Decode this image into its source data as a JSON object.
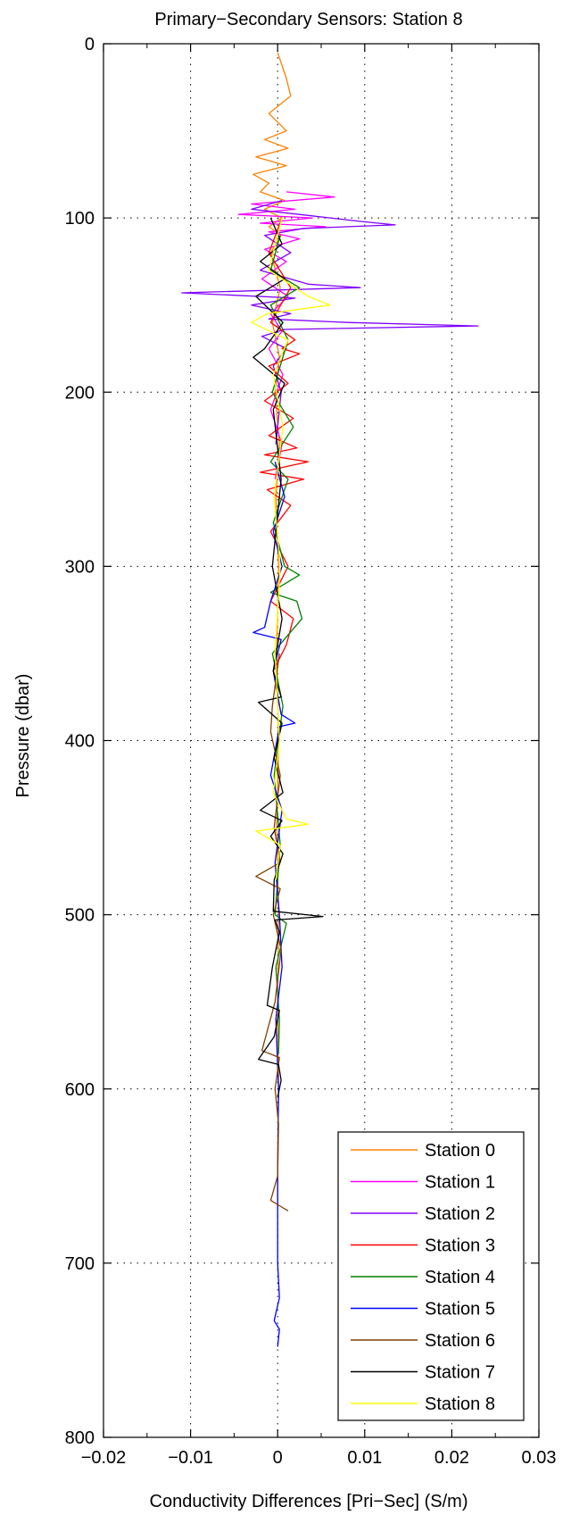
{
  "chart_data": {
    "type": "line",
    "title": "Primary−Secondary Sensors: Station 8",
    "xlabel": "Conductivity Differences [Pri−Sec] (S/m)",
    "ylabel": "Pressure (dbar)",
    "xlim": [
      -0.02,
      0.03
    ],
    "ylim": [
      0,
      800
    ],
    "y_reversed": true,
    "grid": true,
    "legend_position": "bottom-right",
    "x_ticks": [
      -0.02,
      -0.01,
      0,
      0.01,
      0.02,
      0.03
    ],
    "x_tick_labels": [
      "−0.02",
      "−0.01",
      "0",
      "0.01",
      "0.02",
      "0.03"
    ],
    "y_ticks": [
      0,
      100,
      200,
      300,
      400,
      500,
      600,
      700,
      800
    ],
    "y_tick_labels": [
      "0",
      "100",
      "200",
      "300",
      "400",
      "500",
      "600",
      "700",
      "800"
    ],
    "series": [
      {
        "name": "Station 0",
        "color": "#ff8000",
        "p": [
          5,
          20,
          30,
          40,
          50,
          55,
          60,
          65,
          70,
          75,
          80,
          85,
          90,
          95,
          100,
          105,
          110,
          120,
          140,
          160,
          180,
          200,
          230,
          260,
          300,
          350,
          400,
          450,
          500,
          550,
          600,
          640,
          660,
          668
        ],
        "v": [
          0,
          0.001,
          0.0015,
          -0.001,
          0.001,
          -0.0015,
          0.0012,
          -0.0025,
          0.001,
          -0.0028,
          -0.001,
          -0.002,
          0.0008,
          -0.0015,
          0.0005,
          -0.001,
          0.0004,
          -0.0008,
          0.0003,
          -0.0006,
          0.0002,
          -0.0003,
          0.0002,
          -0.0002,
          0.0001,
          -0.0001,
          0.0001,
          -0.0001,
          0.0001,
          0,
          0.0001,
          0,
          0,
          0
        ]
      },
      {
        "name": "Station 1",
        "color": "#ff00ff",
        "p": [
          85,
          88,
          92,
          95,
          98,
          100,
          103,
          105,
          108,
          112,
          118,
          125,
          135,
          145,
          155,
          165,
          175,
          190,
          210,
          230,
          250
        ],
        "v": [
          0.001,
          0.0065,
          -0.003,
          0.002,
          -0.0045,
          0.004,
          -0.002,
          0.0055,
          -0.001,
          0.0025,
          -0.0015,
          0.001,
          -0.0018,
          0.0012,
          -0.0008,
          0.0005,
          -0.001,
          0.0006,
          -0.0008,
          0.0005,
          -0.0003
        ]
      },
      {
        "name": "Station 2",
        "color": "#8000ff",
        "p": [
          90,
          95,
          98,
          102,
          104,
          106,
          110,
          120,
          130,
          138,
          140,
          143,
          146,
          150,
          155,
          158,
          160,
          162,
          164,
          168,
          175,
          185,
          200,
          230
        ],
        "v": [
          0.0005,
          -0.003,
          0.0025,
          0.0095,
          0.0135,
          0.003,
          -0.0015,
          0.0015,
          -0.002,
          0.0035,
          0.0095,
          -0.011,
          0.002,
          -0.003,
          0.0015,
          -0.001,
          0.008,
          0.023,
          0.0008,
          -0.0018,
          0.001,
          -0.0005,
          0.0004,
          -0.0002
        ]
      },
      {
        "name": "Station 3",
        "color": "#ff0000",
        "p": [
          100,
          120,
          140,
          160,
          170,
          175,
          178,
          185,
          195,
          205,
          215,
          225,
          232,
          236,
          240,
          246,
          250,
          256,
          265,
          280,
          300,
          320,
          330,
          345,
          360,
          380
        ],
        "v": [
          0.0005,
          -0.001,
          0.0015,
          -0.0008,
          0.002,
          0.0005,
          0.0025,
          -0.001,
          0.0012,
          -0.0015,
          0.0018,
          -0.001,
          0.0022,
          -0.0015,
          0.0035,
          -0.002,
          0.003,
          -0.0012,
          0.0015,
          -0.0008,
          0.0012,
          -0.0008,
          0.0018,
          0.001,
          -0.0005,
          0.0002
        ]
      },
      {
        "name": "Station 4",
        "color": "#008000",
        "p": [
          110,
          130,
          140,
          150,
          170,
          200,
          220,
          240,
          250,
          275,
          300,
          305,
          315,
          320,
          330,
          350,
          380,
          420,
          460,
          500,
          505,
          530,
          560,
          580
        ],
        "v": [
          0.0003,
          -0.0008,
          0.0025,
          -0.0008,
          0.0012,
          -0.0006,
          0.0018,
          -0.0008,
          0.0012,
          -0.0005,
          0.0008,
          0.0025,
          -0.0008,
          0.0022,
          0.0028,
          -0.0006,
          0.0006,
          -0.0004,
          0.0003,
          -0.0003,
          0.001,
          -0.0002,
          0.0002,
          0.0001
        ]
      },
      {
        "name": "Station 5",
        "color": "#0000ff",
        "p": [
          240,
          260,
          280,
          300,
          320,
          335,
          338,
          342,
          360,
          385,
          390,
          392,
          420,
          440,
          470,
          500,
          530,
          560,
          600,
          650,
          700,
          720,
          733,
          738,
          748
        ],
        "v": [
          -0.0003,
          0.0008,
          -0.0005,
          0.0005,
          -0.0008,
          -0.0015,
          -0.0028,
          0.0004,
          -0.0005,
          0.0004,
          0.002,
          0.0002,
          -0.0008,
          0.0005,
          -0.0003,
          0.0002,
          0.0005,
          -0.0002,
          0.0001,
          0,
          0,
          0.0002,
          -0.0004,
          0.0002,
          0
        ]
      },
      {
        "name": "Station 6",
        "color": "#804000",
        "p": [
          350,
          380,
          395,
          420,
          450,
          470,
          478,
          485,
          500,
          520,
          550,
          578,
          582,
          600,
          620,
          650,
          664,
          667,
          670
        ],
        "v": [
          0.0002,
          -0.0006,
          -0.0008,
          0.0003,
          -0.0004,
          0.0003,
          -0.0025,
          0.0003,
          -0.0005,
          0.0004,
          -0.0003,
          -0.0018,
          0.0002,
          -0.0003,
          0.0001,
          0,
          -0.0008,
          0.0002,
          0.0012
        ]
      },
      {
        "name": "Station 7",
        "color": "#000000",
        "p": [
          100,
          115,
          125,
          135,
          145,
          160,
          175,
          180,
          195,
          210,
          250,
          300,
          330,
          360,
          375,
          378,
          390,
          410,
          430,
          440,
          446,
          455,
          465,
          480,
          498,
          501,
          503,
          510,
          530,
          552,
          555,
          570,
          583,
          586,
          595,
          605
        ],
        "v": [
          -0.0008,
          0.0005,
          -0.002,
          0.0008,
          -0.0025,
          0.0006,
          -0.0015,
          -0.0028,
          0.0008,
          -0.0005,
          0.0004,
          -0.0006,
          0.0005,
          -0.0005,
          0.0004,
          -0.0022,
          0.0005,
          -0.0004,
          0.0006,
          -0.002,
          0.0005,
          -0.0008,
          0.0006,
          -0.0004,
          -0.0005,
          0.0052,
          -0.0003,
          0.0002,
          -0.0006,
          -0.0012,
          0.0002,
          -0.0004,
          -0.0022,
          0.0001,
          0.0004,
          0
        ]
      },
      {
        "name": "Station 8",
        "color": "#ffff00",
        "p": [
          100,
          130,
          145,
          150,
          155,
          160,
          170,
          190,
          220,
          260,
          300,
          350,
          400,
          430,
          445,
          448,
          452,
          460,
          480
        ],
        "v": [
          0.0005,
          -0.001,
          0.0035,
          0.006,
          -0.0012,
          -0.003,
          0.0012,
          -0.0005,
          0.0006,
          -0.0004,
          0.0003,
          -0.0003,
          0.0002,
          -0.0005,
          0.001,
          0.0035,
          -0.0025,
          0.0003,
          -0.0002
        ]
      }
    ]
  }
}
